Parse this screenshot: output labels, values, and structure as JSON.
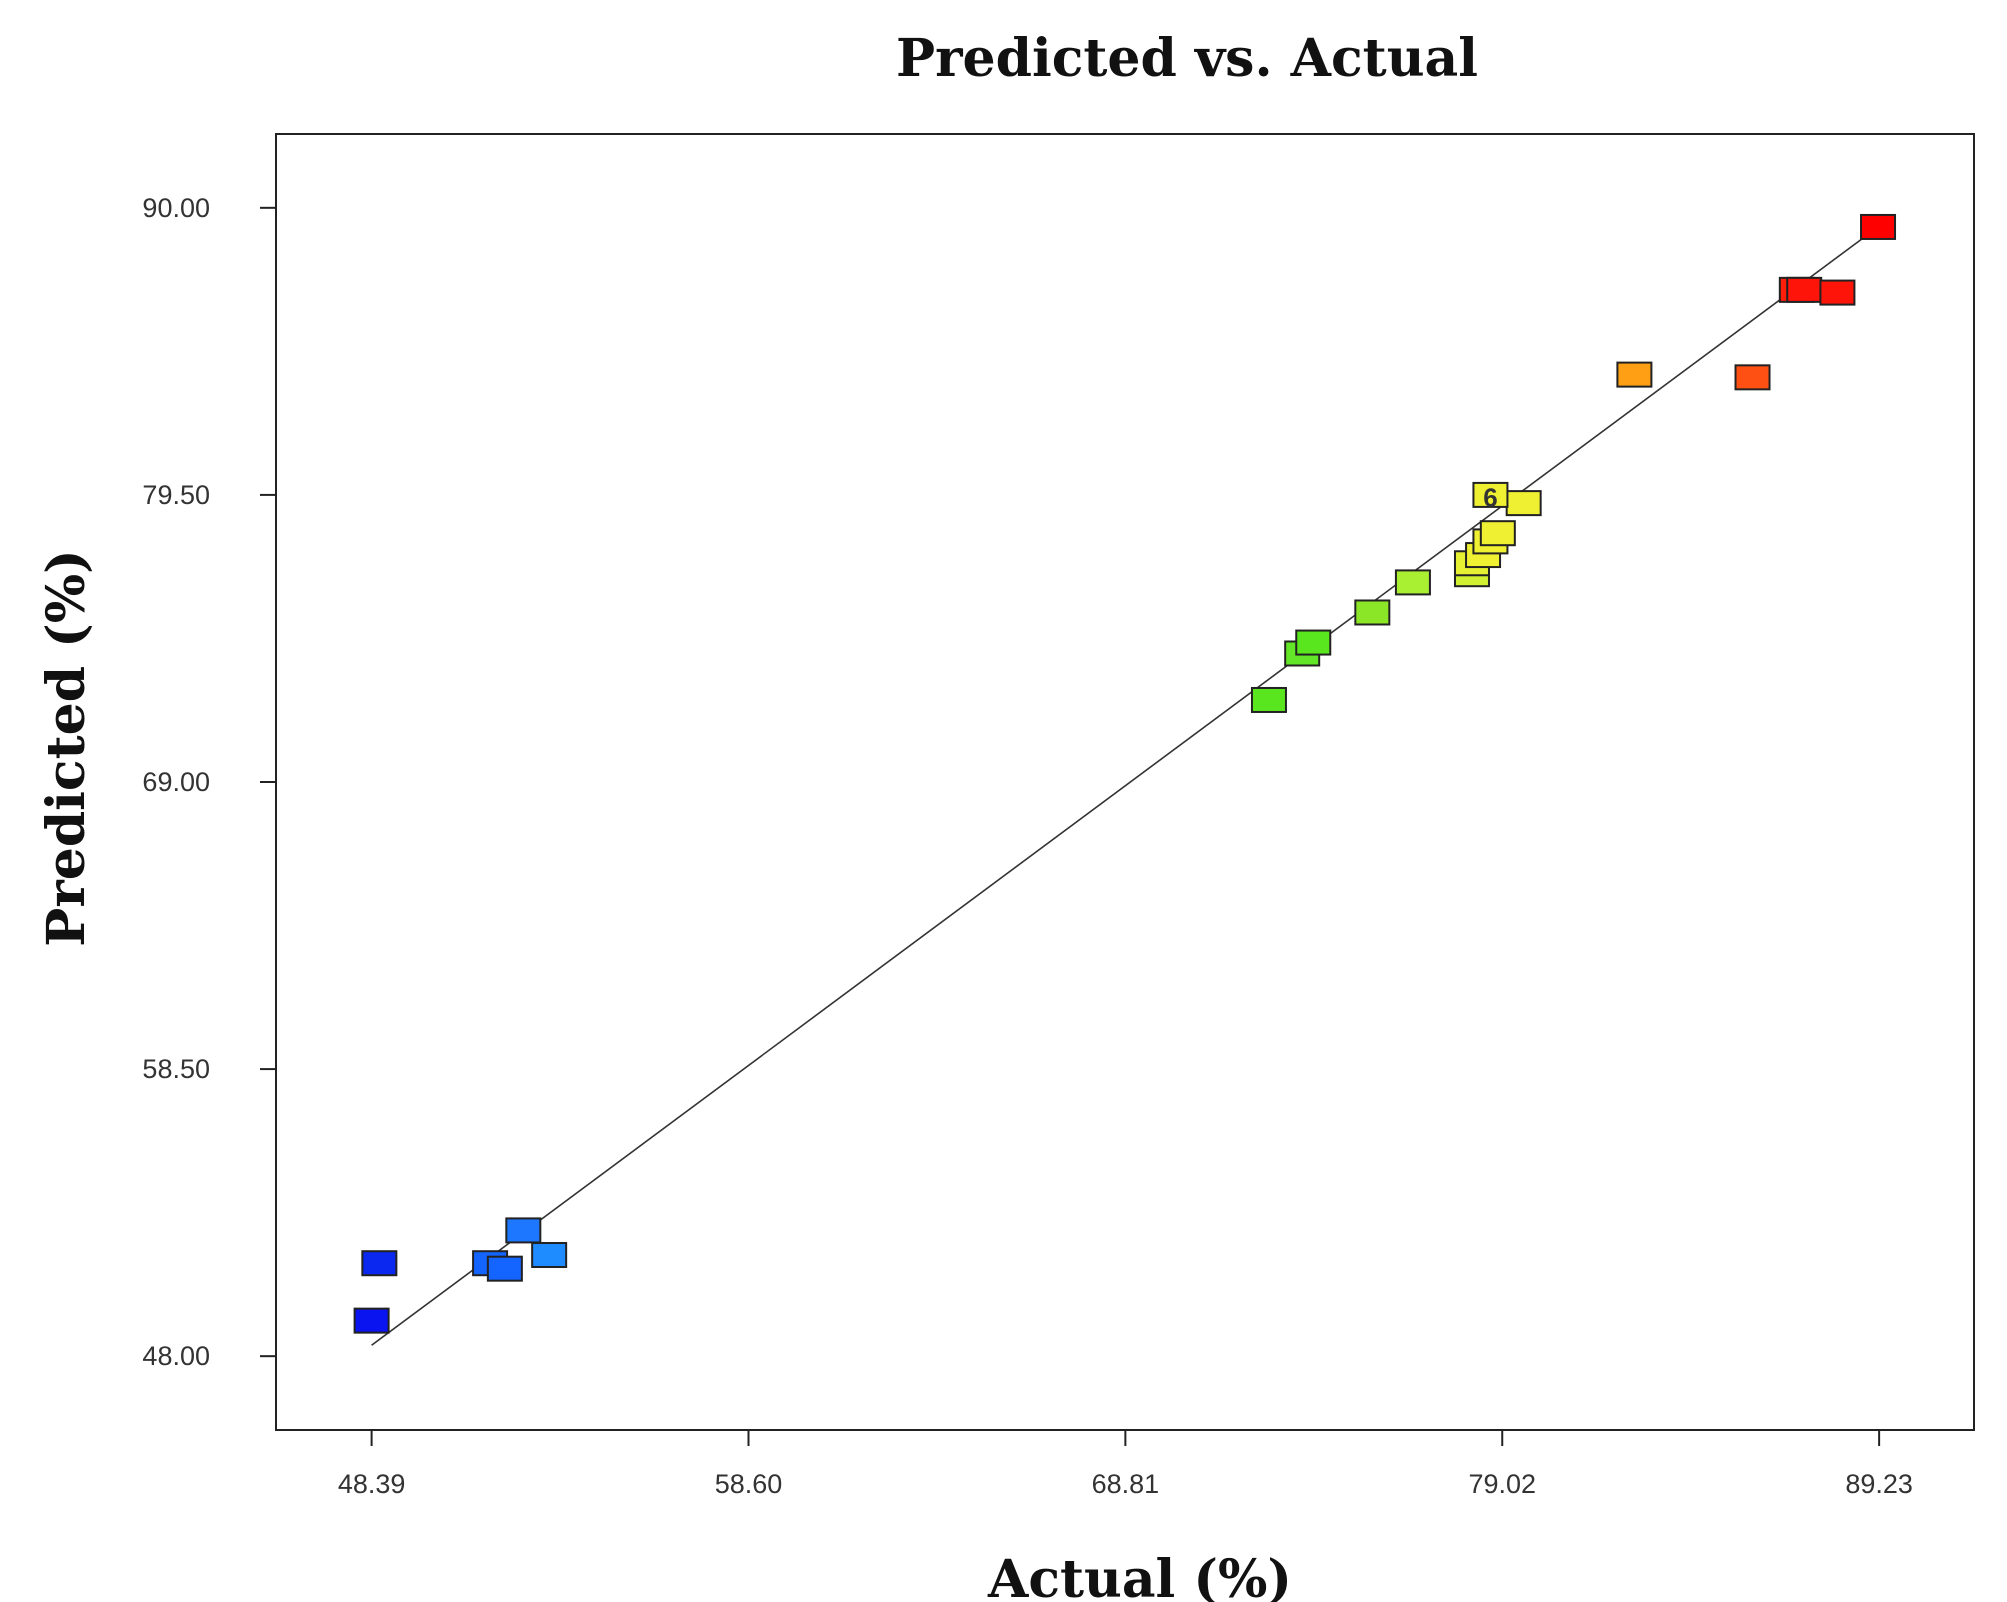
{
  "chart_data": {
    "type": "scatter",
    "title": "Predicted vs. Actual",
    "xlabel": "Actual (%)",
    "ylabel": "Predicted (%)",
    "xlim": [
      45.8,
      91.8
    ],
    "ylim": [
      45.3,
      92.7
    ],
    "x_ticks": [
      "48.39",
      "58.60",
      "68.81",
      "79.02",
      "89.23"
    ],
    "y_ticks": [
      "48.00",
      "58.50",
      "69.00",
      "79.50",
      "90.00"
    ],
    "x_tick_values": [
      48.39,
      58.6,
      68.81,
      79.02,
      89.23
    ],
    "y_tick_values": [
      48.0,
      58.5,
      69.0,
      79.5,
      90.0
    ],
    "reference_line": {
      "from": [
        48.39,
        48.4
      ],
      "to": [
        89.3,
        89.4
      ]
    },
    "color_scale": {
      "low": "#0000ff",
      "mid": "#ffff00",
      "high": "#ff0000"
    },
    "annotations": [
      {
        "text": "6",
        "x": 78.7,
        "y": 79.4
      }
    ],
    "points": [
      {
        "x": 48.39,
        "y": 49.3,
        "color": "#0a14f0"
      },
      {
        "x": 48.6,
        "y": 51.4,
        "color": "#0a28f0"
      },
      {
        "x": 51.6,
        "y": 51.4,
        "color": "#1464ff"
      },
      {
        "x": 52.0,
        "y": 51.2,
        "color": "#1464ff"
      },
      {
        "x": 52.5,
        "y": 52.6,
        "color": "#1e78ff"
      },
      {
        "x": 53.2,
        "y": 51.7,
        "color": "#1e8cff"
      },
      {
        "x": 72.7,
        "y": 72.0,
        "color": "#5ae61e"
      },
      {
        "x": 73.6,
        "y": 73.7,
        "color": "#64e628"
      },
      {
        "x": 73.9,
        "y": 74.1,
        "color": "#5ae61e"
      },
      {
        "x": 75.5,
        "y": 75.2,
        "color": "#8ce628"
      },
      {
        "x": 76.6,
        "y": 76.3,
        "color": "#aaf032"
      },
      {
        "x": 78.2,
        "y": 76.6,
        "color": "#d2f032"
      },
      {
        "x": 78.2,
        "y": 77.0,
        "color": "#e6f032"
      },
      {
        "x": 78.5,
        "y": 77.3,
        "color": "#f0f032"
      },
      {
        "x": 78.7,
        "y": 77.8,
        "color": "#f0f032"
      },
      {
        "x": 78.9,
        "y": 78.1,
        "color": "#f0f032"
      },
      {
        "x": 79.6,
        "y": 79.2,
        "color": "#f0f032"
      },
      {
        "x": 78.7,
        "y": 79.5,
        "color": "#f0f032"
      },
      {
        "x": 82.6,
        "y": 83.9,
        "color": "#ffa014"
      },
      {
        "x": 85.8,
        "y": 83.8,
        "color": "#ff5014"
      },
      {
        "x": 87.0,
        "y": 87.0,
        "color": "#ff1e0a"
      },
      {
        "x": 87.2,
        "y": 87.0,
        "color": "#ff140a"
      },
      {
        "x": 88.1,
        "y": 86.9,
        "color": "#ff140a"
      },
      {
        "x": 89.2,
        "y": 89.3,
        "color": "#ff0000"
      }
    ]
  }
}
